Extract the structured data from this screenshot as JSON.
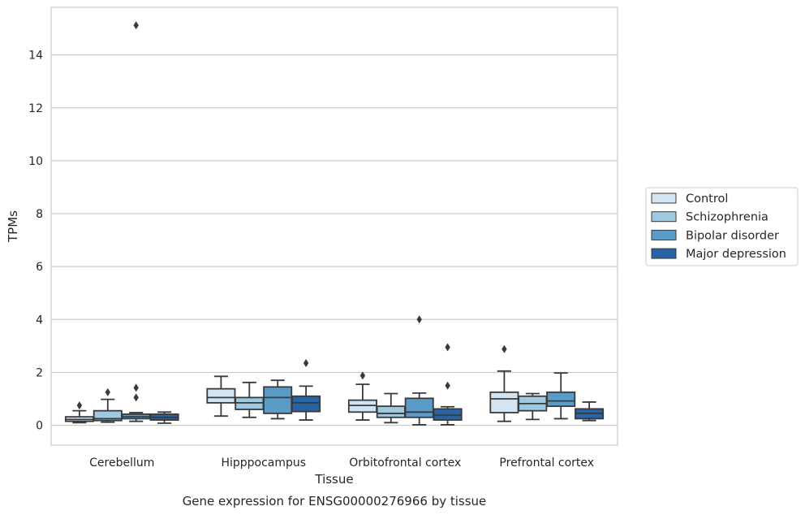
{
  "chart_data": {
    "type": "box",
    "title": "",
    "xlabel": "Tissue",
    "ylabel": "TPMs",
    "caption": "Gene expression for ENSG00000276966 by tissue",
    "categories": [
      "Cerebellum",
      "Hipppocampus",
      "Orbitofrontal cortex",
      "Prefrontal cortex"
    ],
    "yticks": [
      0,
      2,
      4,
      6,
      8,
      10,
      12,
      14
    ],
    "ylim": [
      -0.75,
      15.8
    ],
    "grid": "horizontal",
    "legend_position": "right",
    "series": [
      {
        "name": "Control",
        "color": "#d3e4f3",
        "boxes": [
          {
            "whisker_low": 0.1,
            "q1": 0.15,
            "median": 0.22,
            "q3": 0.32,
            "whisker_high": 0.55,
            "outliers": [
              0.75
            ]
          },
          {
            "whisker_low": 0.35,
            "q1": 0.85,
            "median": 1.05,
            "q3": 1.38,
            "whisker_high": 1.85,
            "outliers": []
          },
          {
            "whisker_low": 0.2,
            "q1": 0.5,
            "median": 0.75,
            "q3": 0.95,
            "whisker_high": 1.55,
            "outliers": [
              1.88
            ]
          },
          {
            "whisker_low": 0.15,
            "q1": 0.48,
            "median": 1.0,
            "q3": 1.25,
            "whisker_high": 2.05,
            "outliers": [
              2.88
            ]
          }
        ]
      },
      {
        "name": "Schizophrenia",
        "color": "#9ecae1",
        "boxes": [
          {
            "whisker_low": 0.12,
            "q1": 0.18,
            "median": 0.25,
            "q3": 0.55,
            "whisker_high": 0.98,
            "outliers": [
              1.25
            ]
          },
          {
            "whisker_low": 0.3,
            "q1": 0.6,
            "median": 0.85,
            "q3": 1.05,
            "whisker_high": 1.62,
            "outliers": []
          },
          {
            "whisker_low": 0.1,
            "q1": 0.3,
            "median": 0.45,
            "q3": 0.72,
            "whisker_high": 1.2,
            "outliers": []
          },
          {
            "whisker_low": 0.22,
            "q1": 0.55,
            "median": 0.82,
            "q3": 1.1,
            "whisker_high": 1.2,
            "outliers": []
          }
        ]
      },
      {
        "name": "Bipolar disorder",
        "color": "#5b9bc8",
        "boxes": [
          {
            "whisker_low": 0.15,
            "q1": 0.25,
            "median": 0.32,
            "q3": 0.42,
            "whisker_high": 0.48,
            "outliers": [
              1.05,
              1.42,
              15.12
            ]
          },
          {
            "whisker_low": 0.25,
            "q1": 0.45,
            "median": 1.05,
            "q3": 1.45,
            "whisker_high": 1.7,
            "outliers": []
          },
          {
            "whisker_low": 0.02,
            "q1": 0.3,
            "median": 0.5,
            "q3": 1.02,
            "whisker_high": 1.22,
            "outliers": [
              4.0
            ]
          },
          {
            "whisker_low": 0.25,
            "q1": 0.72,
            "median": 0.92,
            "q3": 1.25,
            "whisker_high": 1.98,
            "outliers": []
          }
        ]
      },
      {
        "name": "Major depression",
        "color": "#2764a6",
        "boxes": [
          {
            "whisker_low": 0.08,
            "q1": 0.2,
            "median": 0.3,
            "q3": 0.42,
            "whisker_high": 0.5,
            "outliers": []
          },
          {
            "whisker_low": 0.2,
            "q1": 0.52,
            "median": 0.85,
            "q3": 1.1,
            "whisker_high": 1.48,
            "outliers": [
              2.35
            ]
          },
          {
            "whisker_low": 0.02,
            "q1": 0.2,
            "median": 0.38,
            "q3": 0.62,
            "whisker_high": 0.7,
            "outliers": [
              1.5,
              2.95
            ]
          },
          {
            "whisker_low": 0.18,
            "q1": 0.25,
            "median": 0.45,
            "q3": 0.62,
            "whisker_high": 0.88,
            "outliers": []
          }
        ]
      }
    ]
  }
}
